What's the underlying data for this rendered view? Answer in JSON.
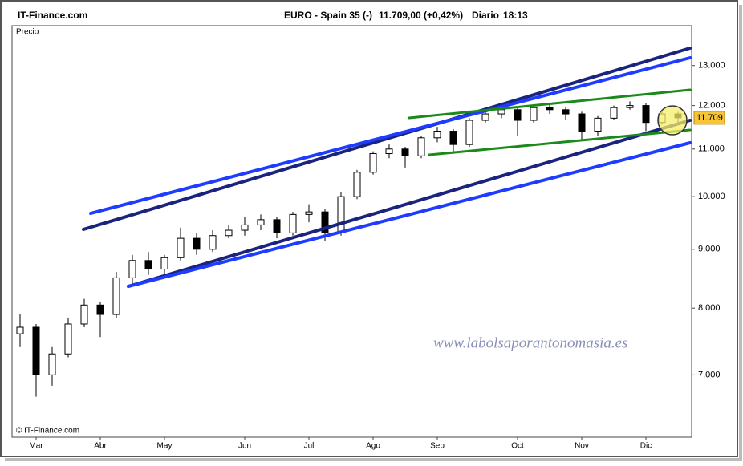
{
  "header": {
    "site": "IT-Finance.com",
    "instrument": "EURO - Spain 35 (-)",
    "quote": "11.709,00 (+0,42%)",
    "period": "Diario",
    "time": "18:13"
  },
  "chart_data": {
    "type": "candlestick",
    "panel_label": "Precio",
    "copyright": "© IT-Finance.com",
    "watermark": "www.labolsaporantonomasia.es",
    "log_scale": true,
    "grid": false,
    "up_color": "#ffffff",
    "down_color": "#000000",
    "last_label": "11.709",
    "categories": [
      null,
      "Mar",
      null,
      null,
      null,
      "Abr",
      null,
      null,
      null,
      "May",
      null,
      null,
      null,
      null,
      "Jun",
      null,
      null,
      null,
      "Jul",
      null,
      null,
      null,
      "Ago",
      null,
      null,
      null,
      "Sep",
      null,
      null,
      null,
      null,
      "Oct",
      null,
      null,
      null,
      "Nov",
      null,
      null,
      null,
      "Dic",
      null,
      null
    ],
    "open": [
      7600,
      7700,
      7000,
      7300,
      7750,
      8050,
      7900,
      8500,
      8800,
      8650,
      8850,
      9200,
      9000,
      9250,
      9350,
      9450,
      9550,
      9300,
      9650,
      9700,
      9300,
      10000,
      10500,
      10900,
      11000,
      10850,
      11250,
      11400,
      11100,
      11650,
      11800,
      11900,
      11650,
      11950,
      11900,
      11800,
      11400,
      11700,
      11950,
      12000,
      11600,
      11800
    ],
    "high": [
      7900,
      7750,
      7400,
      7850,
      8150,
      8100,
      8600,
      8900,
      8950,
      8900,
      9400,
      9300,
      9350,
      9450,
      9600,
      9650,
      9600,
      9700,
      9850,
      9750,
      10100,
      10550,
      10950,
      11100,
      11050,
      11300,
      11500,
      11450,
      11700,
      11900,
      12000,
      11950,
      12000,
      12050,
      11950,
      11850,
      11750,
      12000,
      12100,
      12050,
      11900,
      11850
    ],
    "low": [
      7400,
      6700,
      6850,
      7250,
      7700,
      7550,
      7850,
      8400,
      8550,
      8500,
      8800,
      8900,
      8950,
      9200,
      9250,
      9350,
      9200,
      9250,
      9500,
      9150,
      9250,
      9950,
      10450,
      10800,
      10600,
      10800,
      11150,
      10900,
      11050,
      11600,
      11700,
      11300,
      11600,
      11800,
      11650,
      11200,
      11300,
      11650,
      11900,
      11400,
      11550,
      11600
    ],
    "close": [
      7700,
      7000,
      7300,
      7750,
      8050,
      7900,
      8500,
      8800,
      8650,
      8850,
      9200,
      9000,
      9250,
      9350,
      9450,
      9550,
      9300,
      9650,
      9700,
      9300,
      10000,
      10500,
      10900,
      11000,
      10850,
      11250,
      11400,
      11100,
      11650,
      11800,
      11900,
      11650,
      11950,
      11900,
      11800,
      11400,
      11700,
      11950,
      12000,
      11600,
      11800,
      11709
    ],
    "ylim": [
      6180,
      14080
    ],
    "yticks": [
      {
        "value": 7000,
        "label": "7.000"
      },
      {
        "value": 8000,
        "label": "8.000"
      },
      {
        "value": 9000,
        "label": "9.000"
      },
      {
        "value": 10000,
        "label": "10.000"
      },
      {
        "value": 11000,
        "label": "11.000"
      },
      {
        "value": 12000,
        "label": "12.000"
      },
      {
        "value": 13000,
        "label": "13.000"
      }
    ]
  }
}
